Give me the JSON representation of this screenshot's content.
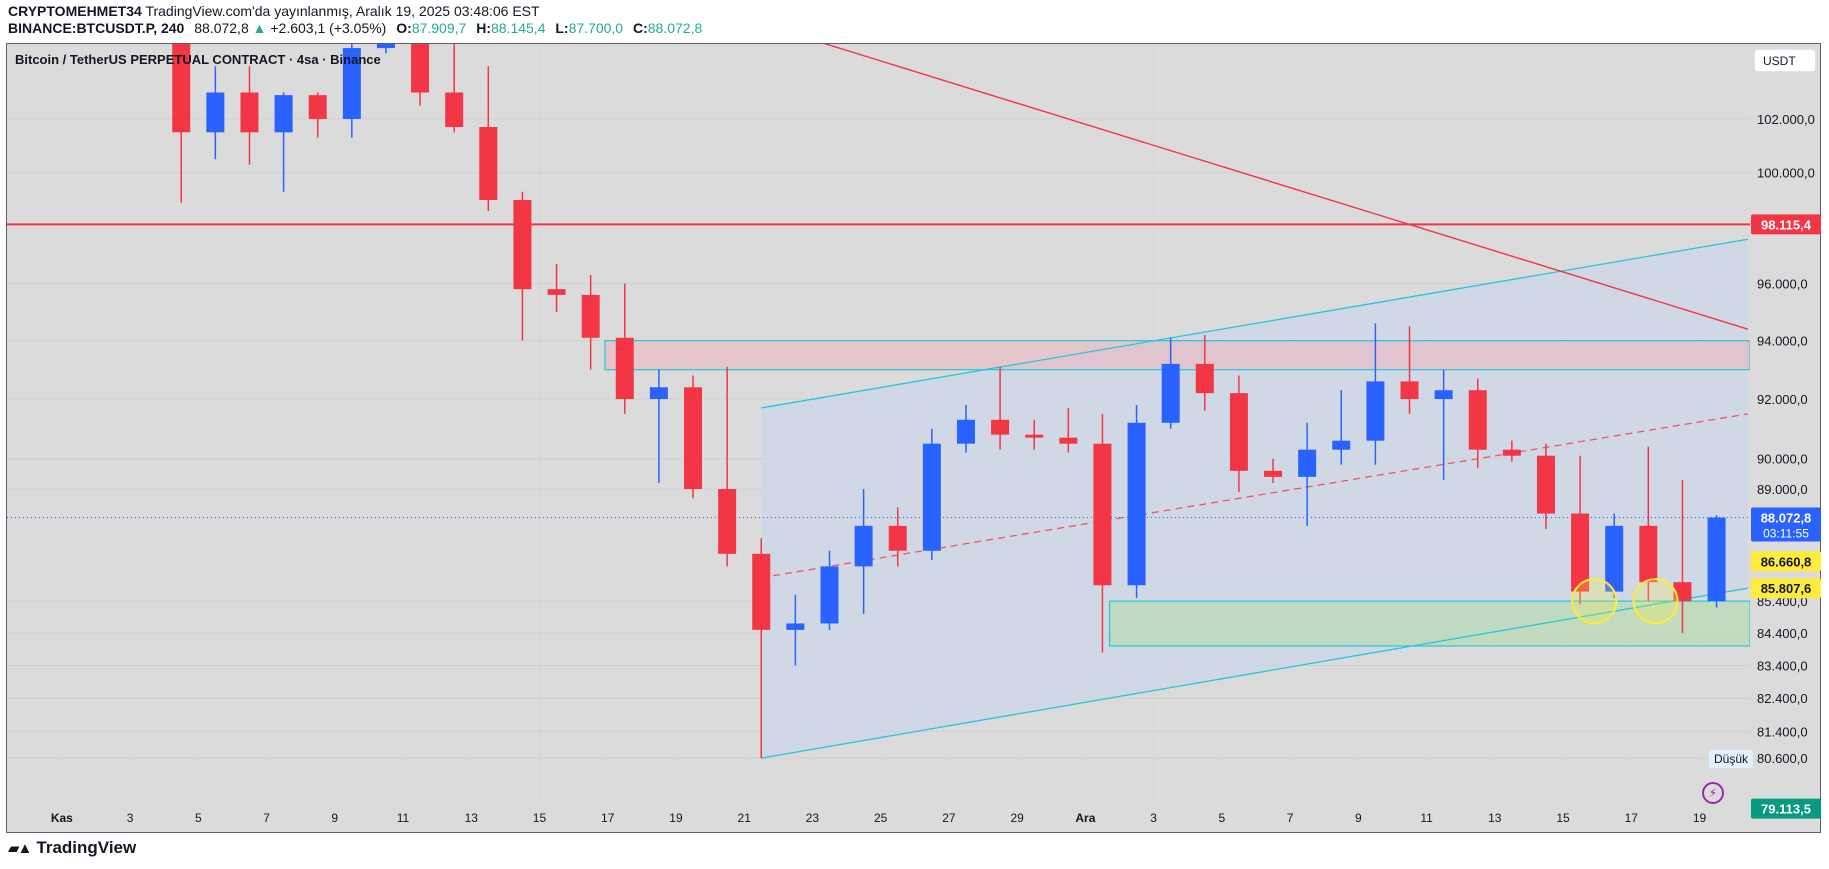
{
  "header": {
    "publisher": "CRYPTOMEHMET34",
    "published_text": "TradingView.com'da yayınlanmış, Aralık 19, 2025 03:48:06 EST",
    "symbol": "BINANCE:BTCUSDT.P, 240",
    "last": "88.072,8",
    "change_arrow": "▲",
    "change": "+2.603,1 (+3.05%)",
    "o_label": "O:",
    "o": "87.909,7",
    "h_label": "H:",
    "h": "88.145,4",
    "l_label": "L:",
    "l": "87.700,0",
    "c_label": "C:",
    "c": "88.072,8"
  },
  "chart_title": "Bitcoin / TetherUS PERPETUAL CONTRACT · 4sa · Binance",
  "currency_button": "USDT",
  "low_marker_label": "Düşük",
  "footer_logo": "TradingView",
  "colors": {
    "up": "#2962ff",
    "down": "#f23645",
    "background": "#dbdbdb",
    "grid": "#cfd0d3",
    "channel": "#26c6da",
    "resistance": "#f23645"
  },
  "chart_data": {
    "type": "candlestick",
    "interval": "240",
    "y_scale": "log",
    "grid": true,
    "ylim": [
      78800,
      105000
    ],
    "xlim": [
      "2025-10-30T06:00",
      "2025-12-20T10:00"
    ],
    "x_ticks": [
      {
        "label": "Kas",
        "date": "2025-11-01"
      },
      {
        "label": "3",
        "date": "2025-11-03"
      },
      {
        "label": "5",
        "date": "2025-11-05"
      },
      {
        "label": "7",
        "date": "2025-11-07"
      },
      {
        "label": "9",
        "date": "2025-11-09"
      },
      {
        "label": "11",
        "date": "2025-11-11"
      },
      {
        "label": "13",
        "date": "2025-11-13"
      },
      {
        "label": "15",
        "date": "2025-11-15"
      },
      {
        "label": "17",
        "date": "2025-11-17"
      },
      {
        "label": "19",
        "date": "2025-11-19"
      },
      {
        "label": "21",
        "date": "2025-11-21"
      },
      {
        "label": "23",
        "date": "2025-11-23"
      },
      {
        "label": "25",
        "date": "2025-11-25"
      },
      {
        "label": "27",
        "date": "2025-11-27"
      },
      {
        "label": "29",
        "date": "2025-11-29"
      },
      {
        "label": "Ara",
        "date": "2025-12-01"
      },
      {
        "label": "3",
        "date": "2025-12-03"
      },
      {
        "label": "5",
        "date": "2025-12-05"
      },
      {
        "label": "7",
        "date": "2025-12-07"
      },
      {
        "label": "9",
        "date": "2025-12-09"
      },
      {
        "label": "11",
        "date": "2025-12-11"
      },
      {
        "label": "13",
        "date": "2025-12-13"
      },
      {
        "label": "15",
        "date": "2025-12-15"
      },
      {
        "label": "17",
        "date": "2025-12-17"
      },
      {
        "label": "19",
        "date": "2025-12-19"
      }
    ],
    "y_ticks": [
      {
        "value": 102000,
        "label": "102.000,0"
      },
      {
        "value": 100000,
        "label": "100.000,0"
      },
      {
        "value": 96000,
        "label": "96.000,0"
      },
      {
        "value": 94000,
        "label": "94.000,0"
      },
      {
        "value": 92000,
        "label": "92.000,0"
      },
      {
        "value": 90000,
        "label": "90.000,0"
      },
      {
        "value": 89000,
        "label": "89.000,0"
      },
      {
        "value": 85400,
        "label": "85.400,0"
      },
      {
        "value": 84400,
        "label": "84.400,0"
      },
      {
        "value": 83400,
        "label": "83.400,0"
      },
      {
        "value": 82400,
        "label": "82.400,0"
      },
      {
        "value": 81400,
        "label": "81.400,0"
      },
      {
        "value": 80600,
        "label": "80.600,0"
      }
    ],
    "candles": [
      {
        "date": "2025-11-04",
        "o": 106500,
        "h": 107300,
        "l": 98900,
        "c": 101500
      },
      {
        "date": "2025-11-05",
        "o": 101500,
        "h": 104000,
        "l": 100500,
        "c": 103000
      },
      {
        "date": "2025-11-06",
        "o": 103000,
        "h": 104000,
        "l": 100300,
        "c": 101500
      },
      {
        "date": "2025-11-07",
        "o": 101500,
        "h": 103000,
        "l": 99300,
        "c": 102900
      },
      {
        "date": "2025-11-08",
        "o": 102900,
        "h": 103000,
        "l": 101300,
        "c": 102000
      },
      {
        "date": "2025-11-09",
        "o": 102000,
        "h": 105200,
        "l": 101300,
        "c": 104700
      },
      {
        "date": "2025-11-10",
        "o": 104700,
        "h": 106500,
        "l": 104500,
        "c": 105800
      },
      {
        "date": "2025-11-11",
        "o": 105800,
        "h": 107000,
        "l": 102500,
        "c": 103000
      },
      {
        "date": "2025-11-12",
        "o": 103000,
        "h": 105300,
        "l": 101500,
        "c": 101700
      },
      {
        "date": "2025-11-13",
        "o": 101700,
        "h": 104000,
        "l": 98600,
        "c": 99000
      },
      {
        "date": "2025-11-14",
        "o": 99000,
        "h": 99300,
        "l": 94000,
        "c": 95800
      },
      {
        "date": "2025-11-15",
        "o": 95800,
        "h": 96700,
        "l": 95000,
        "c": 95600
      },
      {
        "date": "2025-11-16",
        "o": 95600,
        "h": 96300,
        "l": 93000,
        "c": 94100
      },
      {
        "date": "2025-11-17",
        "o": 94100,
        "h": 96000,
        "l": 91500,
        "c": 92000
      },
      {
        "date": "2025-11-18",
        "o": 92000,
        "h": 93000,
        "l": 89200,
        "c": 92400
      },
      {
        "date": "2025-11-19",
        "o": 92400,
        "h": 92800,
        "l": 88700,
        "c": 89000
      },
      {
        "date": "2025-11-20",
        "o": 89000,
        "h": 93100,
        "l": 86500,
        "c": 86900
      },
      {
        "date": "2025-11-21",
        "o": 86900,
        "h": 87400,
        "l": 80600,
        "c": 84500
      },
      {
        "date": "2025-11-22",
        "o": 84500,
        "h": 85600,
        "l": 83400,
        "c": 84700
      },
      {
        "date": "2025-11-23",
        "o": 84700,
        "h": 87000,
        "l": 84500,
        "c": 86500
      },
      {
        "date": "2025-11-24",
        "o": 86500,
        "h": 89000,
        "l": 85000,
        "c": 87800
      },
      {
        "date": "2025-11-25",
        "o": 87800,
        "h": 88400,
        "l": 86500,
        "c": 87000
      },
      {
        "date": "2025-11-26",
        "o": 87000,
        "h": 91000,
        "l": 86700,
        "c": 90500
      },
      {
        "date": "2025-11-27",
        "o": 90500,
        "h": 91800,
        "l": 90200,
        "c": 91300
      },
      {
        "date": "2025-11-28",
        "o": 91300,
        "h": 93100,
        "l": 90300,
        "c": 90800
      },
      {
        "date": "2025-11-29",
        "o": 90800,
        "h": 91300,
        "l": 90300,
        "c": 90700
      },
      {
        "date": "2025-11-30",
        "o": 90700,
        "h": 91700,
        "l": 90200,
        "c": 90500
      },
      {
        "date": "2025-12-01",
        "o": 90500,
        "h": 91500,
        "l": 83800,
        "c": 85900
      },
      {
        "date": "2025-12-02",
        "o": 85900,
        "h": 91800,
        "l": 85500,
        "c": 91200
      },
      {
        "date": "2025-12-03",
        "o": 91200,
        "h": 94100,
        "l": 91000,
        "c": 93200
      },
      {
        "date": "2025-12-04",
        "o": 93200,
        "h": 94200,
        "l": 91600,
        "c": 92200
      },
      {
        "date": "2025-12-05",
        "o": 92200,
        "h": 92800,
        "l": 88900,
        "c": 89600
      },
      {
        "date": "2025-12-06",
        "o": 89600,
        "h": 90000,
        "l": 89200,
        "c": 89400
      },
      {
        "date": "2025-12-07",
        "o": 89400,
        "h": 91200,
        "l": 87800,
        "c": 90300
      },
      {
        "date": "2025-12-08",
        "o": 90300,
        "h": 92300,
        "l": 89800,
        "c": 90600
      },
      {
        "date": "2025-12-09",
        "o": 90600,
        "h": 94600,
        "l": 89800,
        "c": 92600
      },
      {
        "date": "2025-12-10",
        "o": 92600,
        "h": 94500,
        "l": 91500,
        "c": 92000
      },
      {
        "date": "2025-12-11",
        "o": 92000,
        "h": 93000,
        "l": 89300,
        "c": 92300
      },
      {
        "date": "2025-12-12",
        "o": 92300,
        "h": 92700,
        "l": 89700,
        "c": 90300
      },
      {
        "date": "2025-12-13",
        "o": 90300,
        "h": 90600,
        "l": 89900,
        "c": 90100
      },
      {
        "date": "2025-12-14",
        "o": 90100,
        "h": 90500,
        "l": 87700,
        "c": 88200
      },
      {
        "date": "2025-12-15",
        "o": 88200,
        "h": 90100,
        "l": 85300,
        "c": 85700
      },
      {
        "date": "2025-12-16",
        "o": 85700,
        "h": 88200,
        "l": 85500,
        "c": 87800
      },
      {
        "date": "2025-12-17",
        "o": 87800,
        "h": 90400,
        "l": 85400,
        "c": 86000
      },
      {
        "date": "2025-12-18",
        "o": 86000,
        "h": 89300,
        "l": 84400,
        "c": 85400
      },
      {
        "date": "2025-12-19",
        "o": 85400,
        "h": 88145.4,
        "l": 85200,
        "c": 88072.8
      }
    ],
    "drawings": {
      "horizontal_resistance": 98115.4,
      "downtrend_line": [
        {
          "date": "2025-11-23T07:00",
          "price": 104900
        },
        {
          "date": "2025-12-20T10:00",
          "price": 94400
        }
      ],
      "supply_zone": {
        "from": "2025-11-16T22:00",
        "top": 94000,
        "bottom": 93000
      },
      "demand_zone": {
        "from": "2025-12-01T17:00",
        "top": 85400,
        "bottom": 84000
      },
      "channel": {
        "upper": [
          {
            "date": "2025-11-21T12:00",
            "price": 91700
          },
          {
            "date": "2025-12-20T10:00",
            "price": 97580
          }
        ],
        "middle": [
          {
            "date": "2025-11-21T12:00",
            "price": 86140
          },
          {
            "date": "2025-12-20T10:00",
            "price": 91500
          }
        ],
        "lower": [
          {
            "date": "2025-11-21T12:00",
            "price": 80600
          },
          {
            "date": "2025-12-20T10:00",
            "price": 85807.6
          }
        ]
      },
      "highlight_circles": [
        {
          "date": "2025-12-15T22:00",
          "price": 85400
        },
        {
          "date": "2025-12-17T17:00",
          "price": 85400
        }
      ]
    },
    "last_price": 88072.8,
    "price_labels": [
      {
        "value": 98115.4,
        "label": "98.115,4",
        "bg": "#f23645",
        "fg": "#ffffff"
      },
      {
        "value": 88072.8,
        "label": "88.072,8",
        "sub": "03:11:55",
        "bg": "#2962ff",
        "fg": "#ffffff"
      },
      {
        "value": 86660.8,
        "label": "86.660,8",
        "bg": "#ffeb3b",
        "fg": "#131722"
      },
      {
        "value": 85807.6,
        "label": "85.807,6",
        "bg": "#ffeb3b",
        "fg": "#131722"
      },
      {
        "value": 79113.5,
        "label": "79.113,5",
        "bg": "#089981",
        "fg": "#ffffff"
      }
    ]
  }
}
